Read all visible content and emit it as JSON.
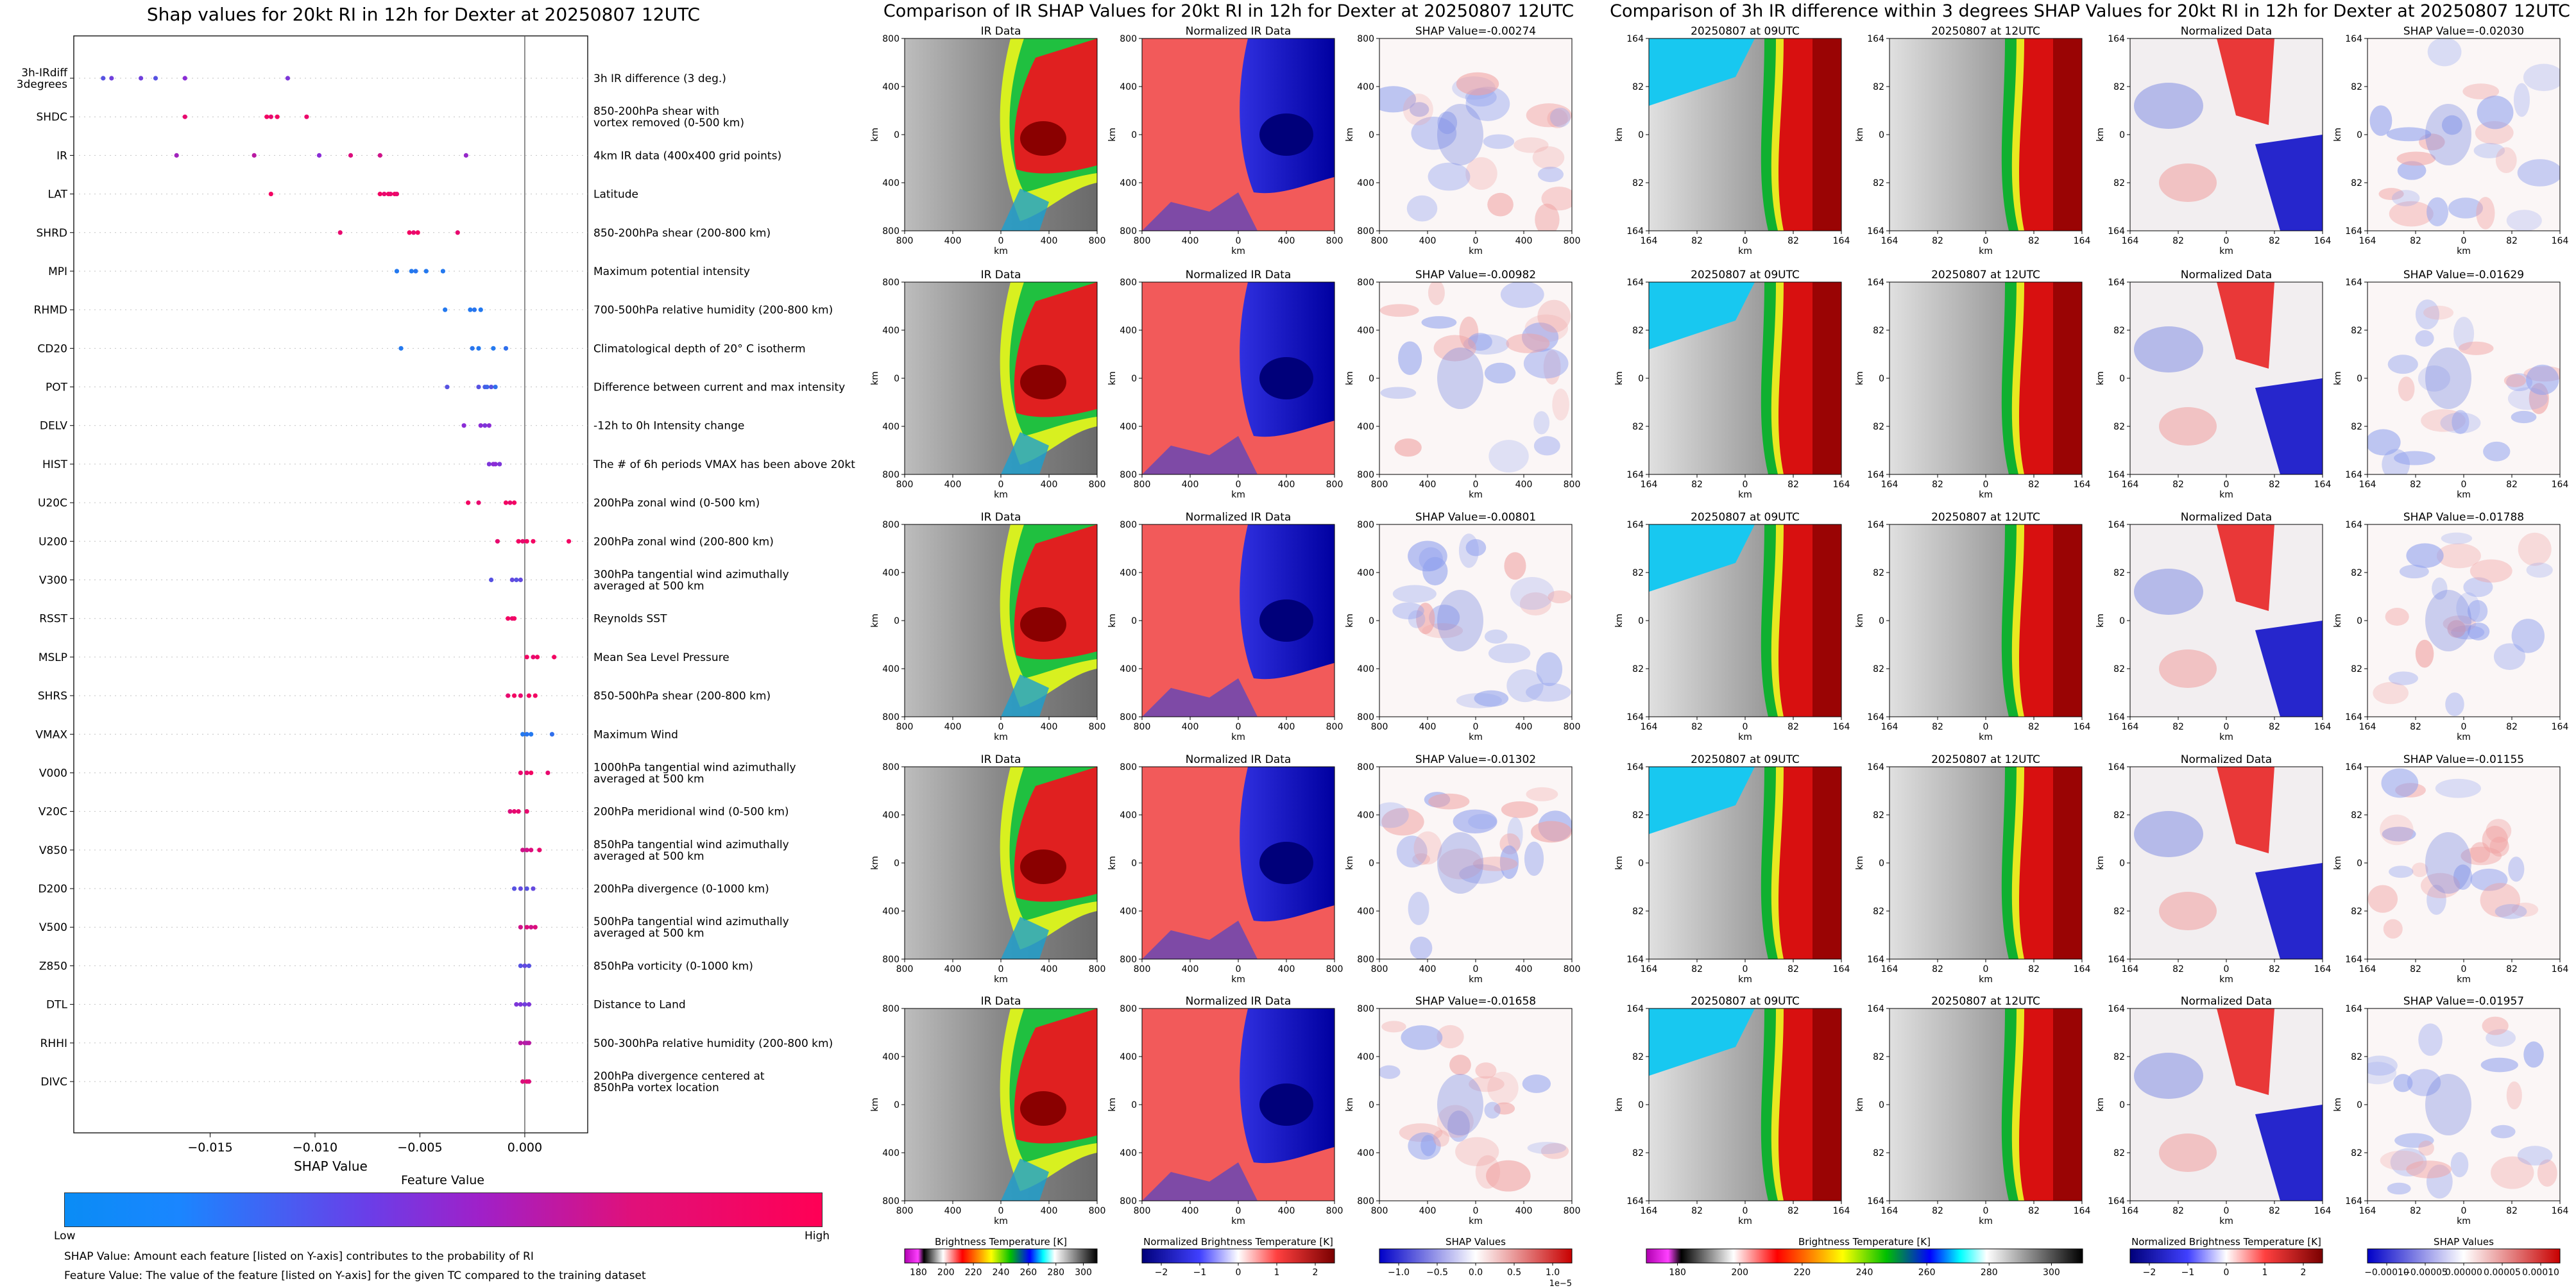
{
  "shap_panel": {
    "title": "Shap values for 20kt RI in 12h for Dexter at 20250807 12UTC",
    "xlabel": "SHAP Value",
    "colorbar_title": "Feature Value",
    "colorbar_low": "Low",
    "colorbar_high": "High",
    "note1": "SHAP Value: Amount each feature [listed on Y-axis] contributes to the probability of RI",
    "note2": "Feature Value: The value of the feature [listed on Y-axis] for the given TC compared to the training dataset",
    "colors": {
      "low": "#0a8cf5",
      "mid": "#8a2cd6",
      "high": "#ff0055"
    }
  },
  "ir_panel": {
    "title": "Comparison of IR SHAP Values for 20kt RI in 12h for Dexter at 20250807 12UTC",
    "col_titles": [
      "IR Data",
      "Normalized IR Data"
    ],
    "shap_titles": [
      "SHAP Value=-0.00274",
      "SHAP Value=-0.00982",
      "SHAP Value=-0.00801",
      "SHAP Value=-0.01302",
      "SHAP Value=-0.01658"
    ],
    "ticks": [
      "800",
      "400",
      "0",
      "400",
      "800"
    ],
    "axis_label": "km",
    "colorbars": [
      {
        "label": "Brightness Temperature [K]",
        "ticks": [
          "180",
          "200",
          "220",
          "240",
          "260",
          "280",
          "300"
        ]
      },
      {
        "label": "Normalized Brightness Temperature [K]",
        "ticks": [
          "−2",
          "−1",
          "0",
          "1",
          "2"
        ]
      },
      {
        "label": "SHAP Values",
        "ticks": [
          "−1.0",
          "−0.5",
          "0.0",
          "0.5",
          "1.0"
        ],
        "exponent": "1e−5"
      }
    ]
  },
  "diff_panel": {
    "title": "Comparison of 3h IR difference within 3 degrees SHAP Values for 20kt RI in 12h for Dexter at 20250807 12UTC",
    "col_titles": [
      "20250807 at 09UTC",
      "20250807 at 12UTC",
      "Normalized Data"
    ],
    "shap_titles": [
      "SHAP Value=-0.02030",
      "SHAP Value=-0.01629",
      "SHAP Value=-0.01788",
      "SHAP Value=-0.01155",
      "SHAP Value=-0.01957"
    ],
    "ticks": [
      "164",
      "82",
      "0",
      "82",
      "164"
    ],
    "axis_label": "km",
    "colorbars": [
      {
        "label": "Brightness Temperature [K]",
        "ticks": [
          "180",
          "200",
          "220",
          "240",
          "260",
          "280",
          "300"
        ]
      },
      {
        "label": "Normalized Brightness Temperature [K]",
        "ticks": [
          "−2",
          "−1",
          "0",
          "1",
          "2"
        ]
      },
      {
        "label": "SHAP Values",
        "ticks": [
          "−0.00010",
          "−0.00005",
          "0.00000",
          "0.00005",
          "0.00010"
        ]
      }
    ]
  },
  "chart_data": {
    "type": "scatter",
    "title": "Shap values for 20kt RI in 12h for Dexter at 20250807 12UTC",
    "xlabel": "SHAP Value",
    "xlim": [
      -0.0215,
      0.003
    ],
    "xticks": [
      -0.015,
      -0.01,
      -0.005,
      0.0
    ],
    "xtick_labels": [
      "−0.015",
      "−0.010",
      "−0.005",
      "0.000"
    ],
    "grid": false,
    "features": [
      {
        "label": "3h-IRdiff\n3degrees",
        "desc": "3h IR difference (3 deg.)",
        "points": [
          [
            -0.0201,
            0.3
          ],
          [
            -0.0197,
            0.4
          ],
          [
            -0.0183,
            0.4
          ],
          [
            -0.0176,
            0.3
          ],
          [
            -0.0162,
            0.5
          ],
          [
            -0.0113,
            0.45
          ]
        ]
      },
      {
        "label": "SHDC",
        "desc": "850-200hPa shear with\nvortex removed (0-500 km)",
        "points": [
          [
            -0.0162,
            0.9
          ],
          [
            -0.0123,
            0.95
          ],
          [
            -0.0121,
            0.9
          ],
          [
            -0.0118,
            0.95
          ],
          [
            -0.0104,
            0.92
          ]
        ]
      },
      {
        "label": "IR",
        "desc": "4km IR data (400x400 grid points)",
        "points": [
          [
            -0.0166,
            0.6
          ],
          [
            -0.0129,
            0.7
          ],
          [
            -0.0098,
            0.5
          ],
          [
            -0.0083,
            0.85
          ],
          [
            -0.0069,
            0.8
          ],
          [
            -0.0028,
            0.55
          ]
        ]
      },
      {
        "label": "LAT",
        "desc": "Latitude",
        "points": [
          [
            -0.0121,
            0.95
          ],
          [
            -0.0069,
            0.95
          ],
          [
            -0.0067,
            0.9
          ],
          [
            -0.0065,
            0.95
          ],
          [
            -0.0064,
            0.9
          ],
          [
            -0.0062,
            0.95
          ],
          [
            -0.0061,
            0.9
          ]
        ]
      },
      {
        "label": "SHRD",
        "desc": "850-200hPa shear (200-800 km)",
        "points": [
          [
            -0.0088,
            0.9
          ],
          [
            -0.0055,
            0.95
          ],
          [
            -0.0053,
            0.9
          ],
          [
            -0.0051,
            0.95
          ],
          [
            -0.0032,
            0.9
          ]
        ]
      },
      {
        "label": "MPI",
        "desc": "Maximum potential intensity",
        "points": [
          [
            -0.0061,
            0.1
          ],
          [
            -0.0054,
            0.1
          ],
          [
            -0.0052,
            0.12
          ],
          [
            -0.0047,
            0.1
          ],
          [
            -0.0039,
            0.1
          ]
        ]
      },
      {
        "label": "RHMD",
        "desc": "700-500hPa relative humidity (200-800 km)",
        "points": [
          [
            -0.0038,
            0.1
          ],
          [
            -0.0026,
            0.1
          ],
          [
            -0.0024,
            0.12
          ],
          [
            -0.0021,
            0.1
          ]
        ]
      },
      {
        "label": "CD20",
        "desc": "Climatological depth of 20° C isotherm",
        "points": [
          [
            -0.0059,
            0.1
          ],
          [
            -0.0025,
            0.12
          ],
          [
            -0.0022,
            0.1
          ],
          [
            -0.0015,
            0.1
          ],
          [
            -0.0009,
            0.15
          ]
        ]
      },
      {
        "label": "POT",
        "desc": "Difference between current and max intensity",
        "points": [
          [
            -0.0037,
            0.3
          ],
          [
            -0.0022,
            0.3
          ],
          [
            -0.0019,
            0.25
          ],
          [
            -0.0018,
            0.2
          ],
          [
            -0.0016,
            0.3
          ],
          [
            -0.0014,
            0.15
          ]
        ]
      },
      {
        "label": "DELV",
        "desc": "-12h to 0h Intensity change",
        "points": [
          [
            -0.0029,
            0.5
          ],
          [
            -0.0021,
            0.5
          ],
          [
            -0.0019,
            0.45
          ],
          [
            -0.0017,
            0.5
          ]
        ]
      },
      {
        "label": "HIST",
        "desc": "The # of 6h periods VMAX has been above 20kt",
        "points": [
          [
            -0.0017,
            0.45
          ],
          [
            -0.0015,
            0.5
          ],
          [
            -0.0014,
            0.5
          ],
          [
            -0.0012,
            0.45
          ]
        ]
      },
      {
        "label": "U20C",
        "desc": "200hPa zonal wind (0-500 km)",
        "points": [
          [
            -0.0027,
            0.95
          ],
          [
            -0.0022,
            0.9
          ],
          [
            -0.0009,
            0.95
          ],
          [
            -0.0007,
            0.9
          ],
          [
            -0.0005,
            0.95
          ]
        ]
      },
      {
        "label": "U200",
        "desc": "200hPa zonal wind (200-800 km)",
        "points": [
          [
            -0.0013,
            0.9
          ],
          [
            -0.0003,
            0.95
          ],
          [
            -0.0001,
            0.9
          ],
          [
            0.0001,
            0.95
          ],
          [
            0.0004,
            0.95
          ],
          [
            0.0021,
            0.95
          ]
        ]
      },
      {
        "label": "V300",
        "desc": "300hPa tangential wind azimuthally\naveraged at 500 km",
        "points": [
          [
            -0.0016,
            0.3
          ],
          [
            -0.0006,
            0.35
          ],
          [
            -0.0004,
            0.3
          ],
          [
            -0.0002,
            0.35
          ]
        ]
      },
      {
        "label": "RSST",
        "desc": "Reynolds SST",
        "points": [
          [
            -0.0008,
            0.95
          ],
          [
            -0.0006,
            0.9
          ],
          [
            -0.0005,
            0.95
          ]
        ]
      },
      {
        "label": "MSLP",
        "desc": "Mean Sea Level Pressure",
        "points": [
          [
            0.0001,
            0.95
          ],
          [
            0.0004,
            0.9
          ],
          [
            0.0006,
            0.95
          ],
          [
            0.0014,
            0.95
          ]
        ]
      },
      {
        "label": "SHRS",
        "desc": "850-500hPa shear (200-800 km)",
        "points": [
          [
            -0.0008,
            0.9
          ],
          [
            -0.0005,
            0.95
          ],
          [
            -0.0002,
            0.9
          ],
          [
            0.0002,
            0.95
          ],
          [
            0.0005,
            0.95
          ]
        ]
      },
      {
        "label": "VMAX",
        "desc": "Maximum Wind",
        "points": [
          [
            -0.0001,
            0.1
          ],
          [
            0.0001,
            0.12
          ],
          [
            0.0003,
            0.1
          ],
          [
            0.0013,
            0.15
          ]
        ]
      },
      {
        "label": "V000",
        "desc": "1000hPa tangential wind azimuthally\naveraged at 500 km",
        "points": [
          [
            -0.0002,
            0.9
          ],
          [
            0.0001,
            0.9
          ],
          [
            0.0003,
            0.95
          ],
          [
            0.0011,
            0.9
          ]
        ]
      },
      {
        "label": "V20C",
        "desc": "200hPa meridional wind (0-500 km)",
        "points": [
          [
            -0.0007,
            0.85
          ],
          [
            -0.0005,
            0.9
          ],
          [
            -0.0003,
            0.9
          ],
          [
            0.0001,
            0.9
          ]
        ]
      },
      {
        "label": "V850",
        "desc": "850hPa tangential wind azimuthally\naveraged at 500 km",
        "points": [
          [
            -0.0001,
            0.8
          ],
          [
            0.0001,
            0.8
          ],
          [
            0.0003,
            0.85
          ],
          [
            0.0007,
            0.9
          ]
        ]
      },
      {
        "label": "D200",
        "desc": "200hPa divergence (0-1000 km)",
        "points": [
          [
            -0.0005,
            0.3
          ],
          [
            -0.0002,
            0.35
          ],
          [
            0.0001,
            0.3
          ],
          [
            0.0004,
            0.35
          ]
        ]
      },
      {
        "label": "V500",
        "desc": "500hPa tangential wind azimuthally\naveraged at 500 km",
        "points": [
          [
            -0.0002,
            0.8
          ],
          [
            0.0001,
            0.85
          ],
          [
            0.0003,
            0.8
          ],
          [
            0.0005,
            0.85
          ]
        ]
      },
      {
        "label": "Z850",
        "desc": "850hPa vorticity (0-1000 km)",
        "points": [
          [
            -0.0002,
            0.3
          ],
          [
            0.0,
            0.35
          ],
          [
            0.0002,
            0.3
          ]
        ]
      },
      {
        "label": "DTL",
        "desc": "Distance to Land",
        "points": [
          [
            -0.0004,
            0.45
          ],
          [
            -0.0002,
            0.45
          ],
          [
            0.0,
            0.4
          ],
          [
            0.0002,
            0.45
          ]
        ]
      },
      {
        "label": "RHHI",
        "desc": "500-300hPa relative humidity (200-800 km)",
        "points": [
          [
            -0.0002,
            0.7
          ],
          [
            0.0,
            0.7
          ],
          [
            0.0001,
            0.65
          ],
          [
            0.0002,
            0.7
          ]
        ]
      },
      {
        "label": "DIVC",
        "desc": "200hPa divergence centered at\n850hPa vortex location",
        "points": [
          [
            -0.0001,
            0.85
          ],
          [
            0.0001,
            0.9
          ],
          [
            0.0002,
            0.85
          ]
        ]
      }
    ]
  }
}
